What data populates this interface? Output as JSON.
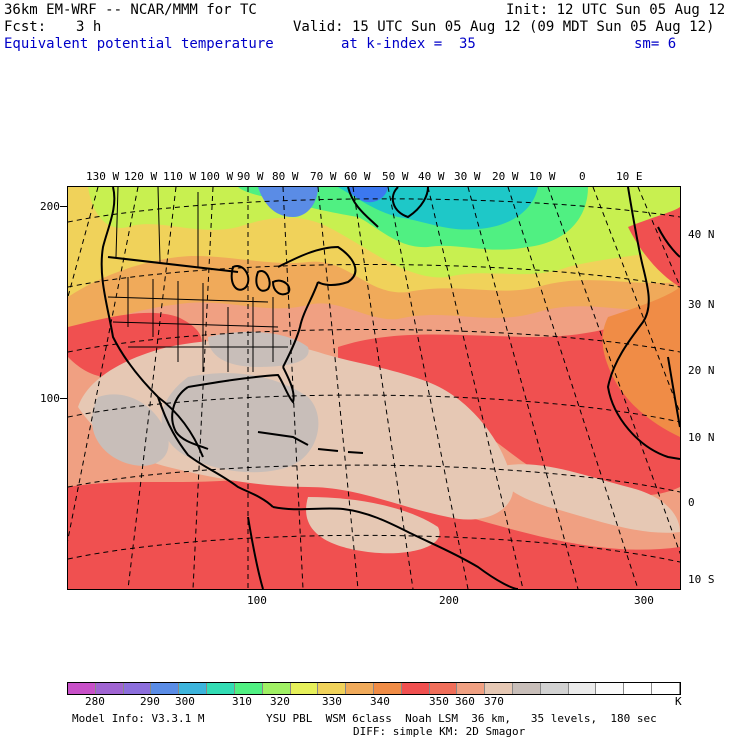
{
  "header": {
    "model": "36km EM-WRF -- NCAR/MMM for TC",
    "init": "Init: 12 UTC Sun 05 Aug 12",
    "fcst_label": "Fcst:",
    "fcst_value": "3 h",
    "valid": "Valid: 15 UTC Sun 05 Aug 12 (09 MDT Sun 05 Aug 12)",
    "field": "Equivalent potential temperature",
    "level": "at k-index =  35",
    "smoothing": "sm= 6"
  },
  "map": {
    "top_lon_labels": [
      "130 W",
      "120 W",
      "110 W",
      "100 W",
      "90 W",
      "80 W",
      "70 W",
      "60 W",
      "50 W",
      "40 W",
      "30 W",
      "20 W",
      "10 W",
      "0",
      "10 E"
    ],
    "right_lat_labels": [
      "40 N",
      "30 N",
      "20 N",
      "10 N",
      "0",
      "10 S"
    ],
    "left_grid_labels": [
      "200",
      "100"
    ],
    "bottom_grid_labels": [
      "100",
      "200",
      "300"
    ],
    "field_colors": {
      "cold_blue": "#3c78f0",
      "teal": "#1ec8c8",
      "green": "#50f082",
      "yellow_green": "#c8f050",
      "yellow": "#f0d25a",
      "orange": "#f08c46",
      "red": "#f05050",
      "salmon": "#f0a082",
      "tan": "#e6c8b4",
      "gray": "#c8c0bc"
    }
  },
  "colorbar": {
    "labels": [
      "280",
      "290",
      "300",
      "310",
      "320",
      "330",
      "340",
      "350",
      "360",
      "370"
    ],
    "unit": "K",
    "colors": [
      "#c850c8",
      "#a064d2",
      "#8c6edc",
      "#5a8ce6",
      "#3cb4dc",
      "#32dcb4",
      "#50f082",
      "#a0f064",
      "#e6f05a",
      "#f0d25a",
      "#f0aa5a",
      "#f08c46",
      "#f05050",
      "#f06e5a",
      "#f0a082",
      "#e6c8b4",
      "#c8beb9",
      "#d2d2d2",
      "#ebebeb",
      "#fafafa",
      "#ffffff",
      "#ffffff"
    ]
  },
  "footer": {
    "model_info": "Model Info: V3.3.1 M",
    "physics": "YSU PBL  WSM 6class  Noah LSM  36 km,   35 levels,  180 sec",
    "diffusion": "DIFF: simple KM: 2D Smagor"
  }
}
